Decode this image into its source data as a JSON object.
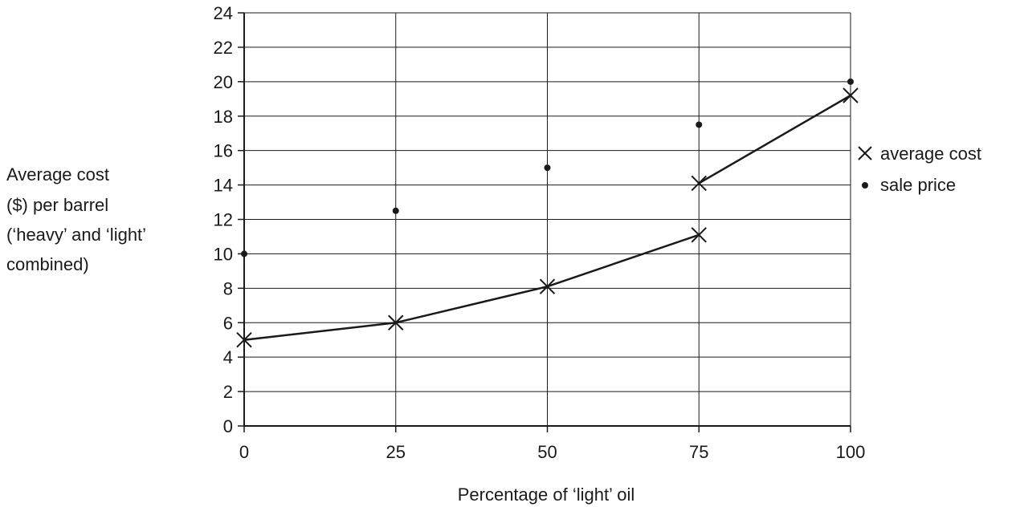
{
  "chart_data": {
    "type": "line",
    "title": "",
    "xlabel": "Percentage of ‘light’ oil",
    "ylabel_lines": [
      "Average cost",
      "($) per barrel",
      "(‘heavy’ and ‘light’",
      "combined)"
    ],
    "x_ticks": [
      0,
      25,
      50,
      75,
      100
    ],
    "y_ticks": [
      0,
      2,
      4,
      6,
      8,
      10,
      12,
      14,
      16,
      18,
      20,
      22,
      24
    ],
    "xlim": [
      0,
      100
    ],
    "ylim": [
      0,
      24
    ],
    "grid": true,
    "legend_position": "right",
    "series": [
      {
        "name": "average cost",
        "marker": "cross",
        "segments": [
          [
            {
              "x": 0,
              "y": 5.0
            },
            {
              "x": 25,
              "y": 6.0
            },
            {
              "x": 50,
              "y": 8.1
            },
            {
              "x": 75,
              "y": 11.1
            }
          ],
          [
            {
              "x": 75,
              "y": 14.1
            },
            {
              "x": 100,
              "y": 19.2
            }
          ]
        ]
      },
      {
        "name": "sale price",
        "marker": "dot",
        "points": [
          {
            "x": 0,
            "y": 10.0
          },
          {
            "x": 25,
            "y": 12.5
          },
          {
            "x": 50,
            "y": 15.0
          },
          {
            "x": 75,
            "y": 17.5
          },
          {
            "x": 100,
            "y": 20.0
          }
        ]
      }
    ],
    "colors": {
      "ink": "#1a1a1a",
      "grid": "#1a1a1a"
    }
  }
}
